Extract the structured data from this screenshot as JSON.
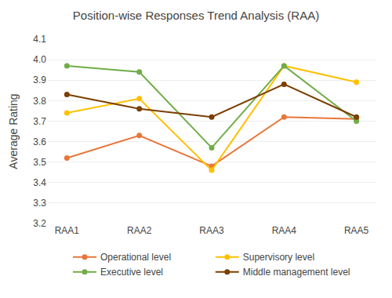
{
  "chart_data": {
    "type": "line",
    "title": "Position-wise Responses Trend Analysis (RAA)",
    "ylabel": "Average Rating",
    "categories": [
      "RAA1",
      "RAA2",
      "RAA3",
      "RAA4",
      "RAA5"
    ],
    "series": [
      {
        "name": "Operational level",
        "color": "#E8763A",
        "marker": "circle",
        "values": [
          3.52,
          3.63,
          3.48,
          3.72,
          3.71
        ]
      },
      {
        "name": "Supervisory level",
        "color": "#FFC000",
        "marker": "circle",
        "values": [
          3.74,
          3.81,
          3.46,
          3.97,
          3.89
        ]
      },
      {
        "name": "Executive level",
        "color": "#70AD47",
        "marker": "circle",
        "values": [
          3.97,
          3.94,
          3.57,
          3.97,
          3.7
        ]
      },
      {
        "name": "Middle management level",
        "color": "#7B3F00",
        "marker": "circle",
        "values": [
          3.83,
          3.76,
          3.72,
          3.88,
          3.72
        ]
      }
    ],
    "ylim": [
      3.2,
      4.1
    ],
    "yticks": [
      3.2,
      3.3,
      3.4,
      3.5,
      3.6,
      3.7,
      3.8,
      3.9,
      {
        "value": 4.0,
        "label": "4.0"
      },
      4.1
    ],
    "grid": true,
    "legend": "bottom"
  }
}
